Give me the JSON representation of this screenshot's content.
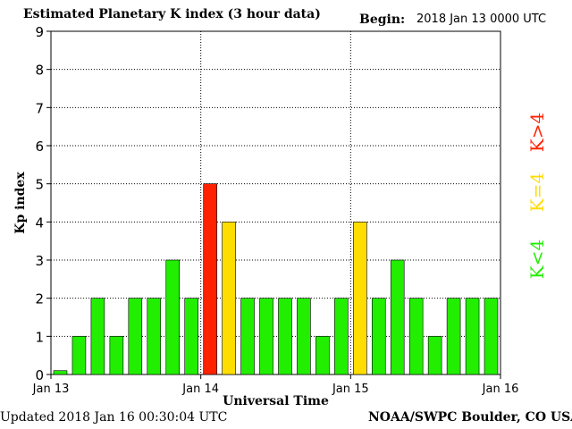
{
  "header": {
    "title": "Estimated Planetary K index (3 hour data)",
    "begin_label": "Begin:",
    "begin_value": "2018 Jan 13 0000 UTC"
  },
  "footer": {
    "updated_label": "Updated",
    "updated_value": "2018 Jan 16 00:30:04 UTC",
    "credit": "NOAA/SWPC Boulder, CO USA"
  },
  "legend": {
    "above": "K>4",
    "equal": "K=4",
    "below": "K<4"
  },
  "colors": {
    "below": "#22ee00",
    "equal": "#ffdd00",
    "above": "#ff2200",
    "grid": "#000000"
  },
  "chart_data": {
    "type": "bar",
    "title": "Estimated Planetary K index (3 hour data)",
    "xlabel": "Universal Time",
    "ylabel": "Kp index",
    "ylim": [
      0,
      9
    ],
    "yticks": [
      0,
      1,
      2,
      3,
      4,
      5,
      6,
      7,
      8,
      9
    ],
    "xticks": [
      "Jan 13",
      "Jan 14",
      "Jan 15",
      "Jan 16"
    ],
    "interval_hours": 3,
    "grid": true,
    "values": [
      0.1,
      1,
      2,
      1,
      2,
      2,
      3,
      2,
      5,
      4,
      2,
      2,
      2,
      2,
      1,
      2,
      4,
      2,
      3,
      2,
      1,
      2,
      2,
      2
    ]
  }
}
